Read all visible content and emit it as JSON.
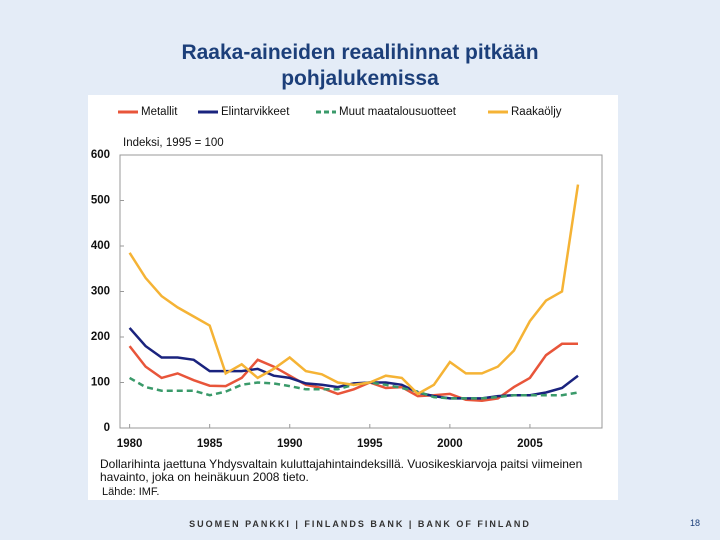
{
  "chart_data": {
    "type": "line",
    "title": "Raaka-aineiden reaalihinnat pitkään pohjalukemissa",
    "y_label": "Indeksi, 1995 = 100",
    "x": [
      1980,
      1981,
      1982,
      1983,
      1984,
      1985,
      1986,
      1987,
      1988,
      1989,
      1990,
      1991,
      1992,
      1993,
      1994,
      1995,
      1996,
      1997,
      1998,
      1999,
      2000,
      2001,
      2002,
      2003,
      2004,
      2005,
      2006,
      2007,
      2008
    ],
    "series": [
      {
        "name": "Metallit",
        "color": "#e8553a",
        "values": [
          180,
          135,
          110,
          120,
          105,
          93,
          92,
          110,
          150,
          135,
          115,
          95,
          88,
          75,
          85,
          100,
          88,
          90,
          70,
          72,
          75,
          62,
          60,
          65,
          90,
          110,
          160,
          185,
          185
        ]
      },
      {
        "name": "Elintarvikkeet",
        "color": "#1a237e",
        "values": [
          220,
          180,
          155,
          155,
          150,
          125,
          125,
          125,
          130,
          115,
          110,
          98,
          95,
          90,
          98,
          100,
          100,
          95,
          78,
          70,
          65,
          65,
          65,
          70,
          72,
          72,
          78,
          88,
          115
        ]
      },
      {
        "name": "Muut maatalousuotteet",
        "color": "#3a9a6a",
        "dashed": true,
        "values": [
          110,
          90,
          82,
          82,
          82,
          72,
          80,
          95,
          100,
          98,
          92,
          85,
          85,
          85,
          95,
          100,
          95,
          88,
          80,
          68,
          65,
          65,
          65,
          68,
          72,
          72,
          72,
          72,
          78
        ]
      },
      {
        "name": "Raakaöljy",
        "color": "#f5b335",
        "values": [
          385,
          330,
          290,
          265,
          245,
          225,
          120,
          140,
          110,
          130,
          155,
          125,
          118,
          100,
          95,
          100,
          115,
          110,
          75,
          95,
          145,
          120,
          120,
          135,
          170,
          235,
          280,
          300,
          535
        ]
      }
    ],
    "xlim": [
      1979.4,
      2009.5
    ],
    "ylim": [
      0,
      600
    ],
    "xticks": [
      1980,
      1985,
      1990,
      1995,
      2000,
      2005
    ],
    "yticks": [
      0,
      100,
      200,
      300,
      400,
      500,
      600
    ],
    "grid": false,
    "note": "Dollarihinta jaettuna Yhdysvaltain kuluttajahintaindeksillä. Vuosikeskiarvoja paitsi viimeinen havainto, joka on heinäkuun 2008 tieto.",
    "source": "Lähde: IMF."
  },
  "footer": {
    "bank": "SUOMEN PANKKI | FINLANDS BANK | BANK OF FINLAND",
    "page": "18"
  }
}
